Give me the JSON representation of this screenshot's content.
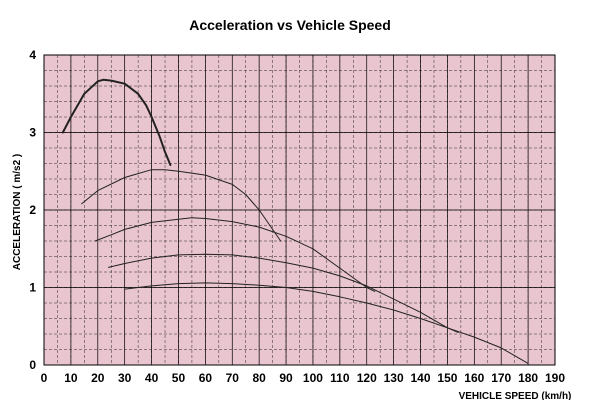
{
  "chart_data": {
    "type": "line",
    "title": "Acceleration vs Vehicle Speed",
    "xlabel": "VEHICLE SPEED (km/h)",
    "ylabel": "ACCELERATION ( m/s2 )",
    "xlim": [
      0,
      190
    ],
    "ylim": [
      0,
      4
    ],
    "x_ticks": [
      0,
      10,
      20,
      30,
      40,
      50,
      60,
      70,
      80,
      90,
      100,
      110,
      120,
      130,
      140,
      150,
      160,
      170,
      180,
      190
    ],
    "y_ticks": [
      0,
      1,
      2,
      3,
      4
    ],
    "x_minor_step": 5,
    "y_minor_step": 0.2,
    "grid": true,
    "legend": "none",
    "colors": {
      "plot_bg": "#e9c5cf",
      "grid": "#000000",
      "line": "#222222"
    },
    "series": [
      {
        "x": [
          7,
          10,
          15,
          20,
          22,
          25,
          30,
          35,
          38,
          40,
          43,
          45,
          47
        ],
        "y": [
          3.0,
          3.2,
          3.5,
          3.66,
          3.68,
          3.67,
          3.63,
          3.5,
          3.35,
          3.2,
          2.95,
          2.75,
          2.58
        ]
      },
      {
        "x": [
          14,
          20,
          30,
          40,
          45,
          50,
          60,
          70,
          75,
          80,
          85,
          88
        ],
        "y": [
          2.08,
          2.25,
          2.42,
          2.52,
          2.52,
          2.5,
          2.45,
          2.33,
          2.2,
          2.0,
          1.75,
          1.6
        ]
      },
      {
        "x": [
          19,
          25,
          30,
          40,
          50,
          55,
          60,
          70,
          80,
          90,
          100,
          110,
          120,
          123
        ],
        "y": [
          1.6,
          1.68,
          1.75,
          1.84,
          1.88,
          1.9,
          1.89,
          1.85,
          1.78,
          1.66,
          1.5,
          1.25,
          1.0,
          0.95
        ]
      },
      {
        "x": [
          24,
          30,
          40,
          50,
          60,
          70,
          80,
          90,
          100,
          110,
          120,
          130,
          140,
          150,
          154
        ],
        "y": [
          1.26,
          1.31,
          1.38,
          1.42,
          1.43,
          1.42,
          1.38,
          1.32,
          1.25,
          1.15,
          1.02,
          0.85,
          0.68,
          0.48,
          0.42
        ]
      },
      {
        "x": [
          30,
          40,
          50,
          60,
          70,
          80,
          90,
          100,
          110,
          120,
          130,
          140,
          150,
          160,
          170,
          180
        ],
        "y": [
          0.98,
          1.02,
          1.05,
          1.06,
          1.05,
          1.03,
          1.0,
          0.95,
          0.88,
          0.8,
          0.71,
          0.6,
          0.48,
          0.36,
          0.22,
          0.02
        ]
      }
    ]
  }
}
